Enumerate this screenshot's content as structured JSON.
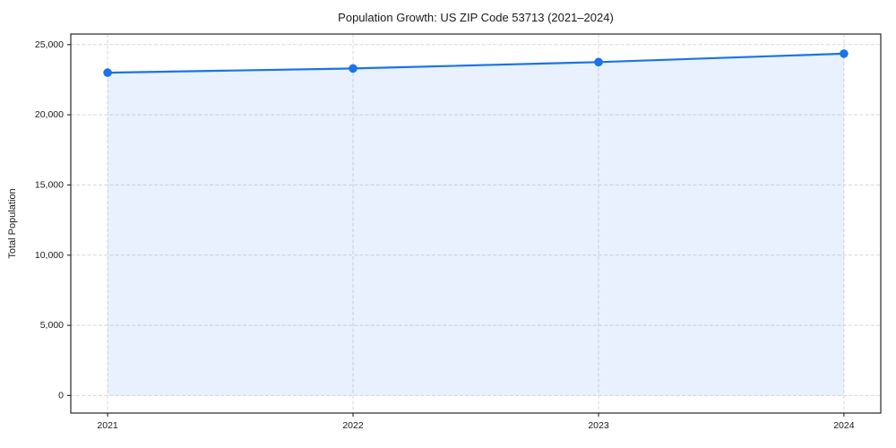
{
  "chart_data": {
    "type": "area",
    "title": "Population Growth: US ZIP Code 53713 (2021–2024)",
    "xlabel": "",
    "ylabel": "Total Population",
    "x": [
      2021,
      2022,
      2023,
      2024
    ],
    "categories": [
      "2021",
      "2022",
      "2023",
      "2024"
    ],
    "series": [
      {
        "name": "Total Population",
        "values": [
          23000,
          23300,
          23750,
          24350
        ]
      }
    ],
    "values": [
      23000,
      23300,
      23750,
      24350
    ],
    "xticklabels": [
      "2021",
      "2022",
      "2023",
      "2024"
    ],
    "yticks": [
      0,
      5000,
      10000,
      15000,
      20000,
      25000
    ],
    "yticklabels": [
      "0",
      "5,000",
      "10,000",
      "15,000",
      "20,000",
      "25,000"
    ],
    "xlim": [
      2020.85,
      2024.15
    ],
    "ylim": [
      -1250,
      25750
    ],
    "grid": true,
    "grid_style": "dashed",
    "legend": false,
    "marker": "circle",
    "colors": {
      "line": "#1a73e8",
      "marker": "#1a73e8",
      "fill": "rgba(26,115,232,0.10)",
      "grid": "#d8d8d8",
      "spine": "#262626",
      "tick": "#262626",
      "text": "#1a1a1a",
      "background": "#ffffff"
    }
  }
}
